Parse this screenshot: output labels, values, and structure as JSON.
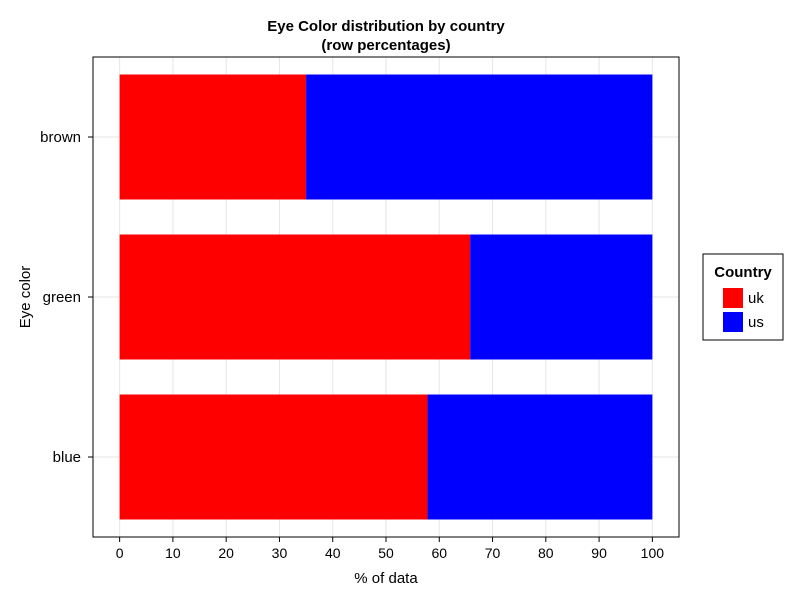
{
  "chart_data": {
    "type": "bar",
    "orientation": "horizontal",
    "stacked": true,
    "title": "Eye Color distribution by country",
    "subtitle": "(row percentages)",
    "xlabel": "% of data",
    "ylabel": "Eye color",
    "xlim": [
      -5,
      105
    ],
    "xticks": [
      0,
      10,
      20,
      30,
      40,
      50,
      60,
      70,
      80,
      90,
      100
    ],
    "categories": [
      "blue",
      "green",
      "brown"
    ],
    "series": [
      {
        "name": "uk",
        "color": "#ff0000",
        "values": [
          57.8,
          65.8,
          35.0
        ]
      },
      {
        "name": "us",
        "color": "#0000ff",
        "values": [
          42.2,
          34.2,
          65.0
        ]
      }
    ],
    "legend": {
      "title": "Country",
      "position": "right"
    },
    "grid": true
  }
}
